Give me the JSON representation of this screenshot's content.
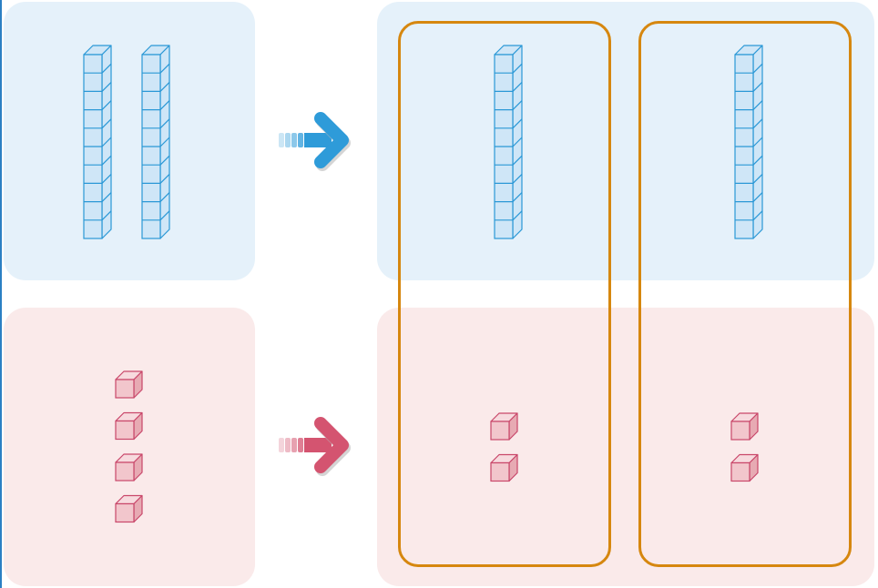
{
  "colors": {
    "edge": "#2b7fc3",
    "tens_panel_bg": "#e5f1fa",
    "ones_panel_bg": "#faeaea",
    "rod_fill": "#cfe6f7",
    "rod_stroke": "#2a98d6",
    "cube_front": "#f2c6cc",
    "cube_top": "#f7dade",
    "cube_side": "#e7aab3",
    "cube_stroke": "#c9476a",
    "arrow_blue": "#2e9bd9",
    "arrow_red": "#d45470",
    "group_border": "#d6870f"
  },
  "diagram": {
    "source": {
      "tens_rods": 2,
      "ones_cubes": 4
    },
    "groups": [
      {
        "tens_rods": 1,
        "ones_cubes": 2
      },
      {
        "tens_rods": 1,
        "ones_cubes": 2
      }
    ],
    "cubes_per_rod": 10,
    "icons": [
      "right-arrow-icon",
      "right-arrow-icon"
    ]
  }
}
